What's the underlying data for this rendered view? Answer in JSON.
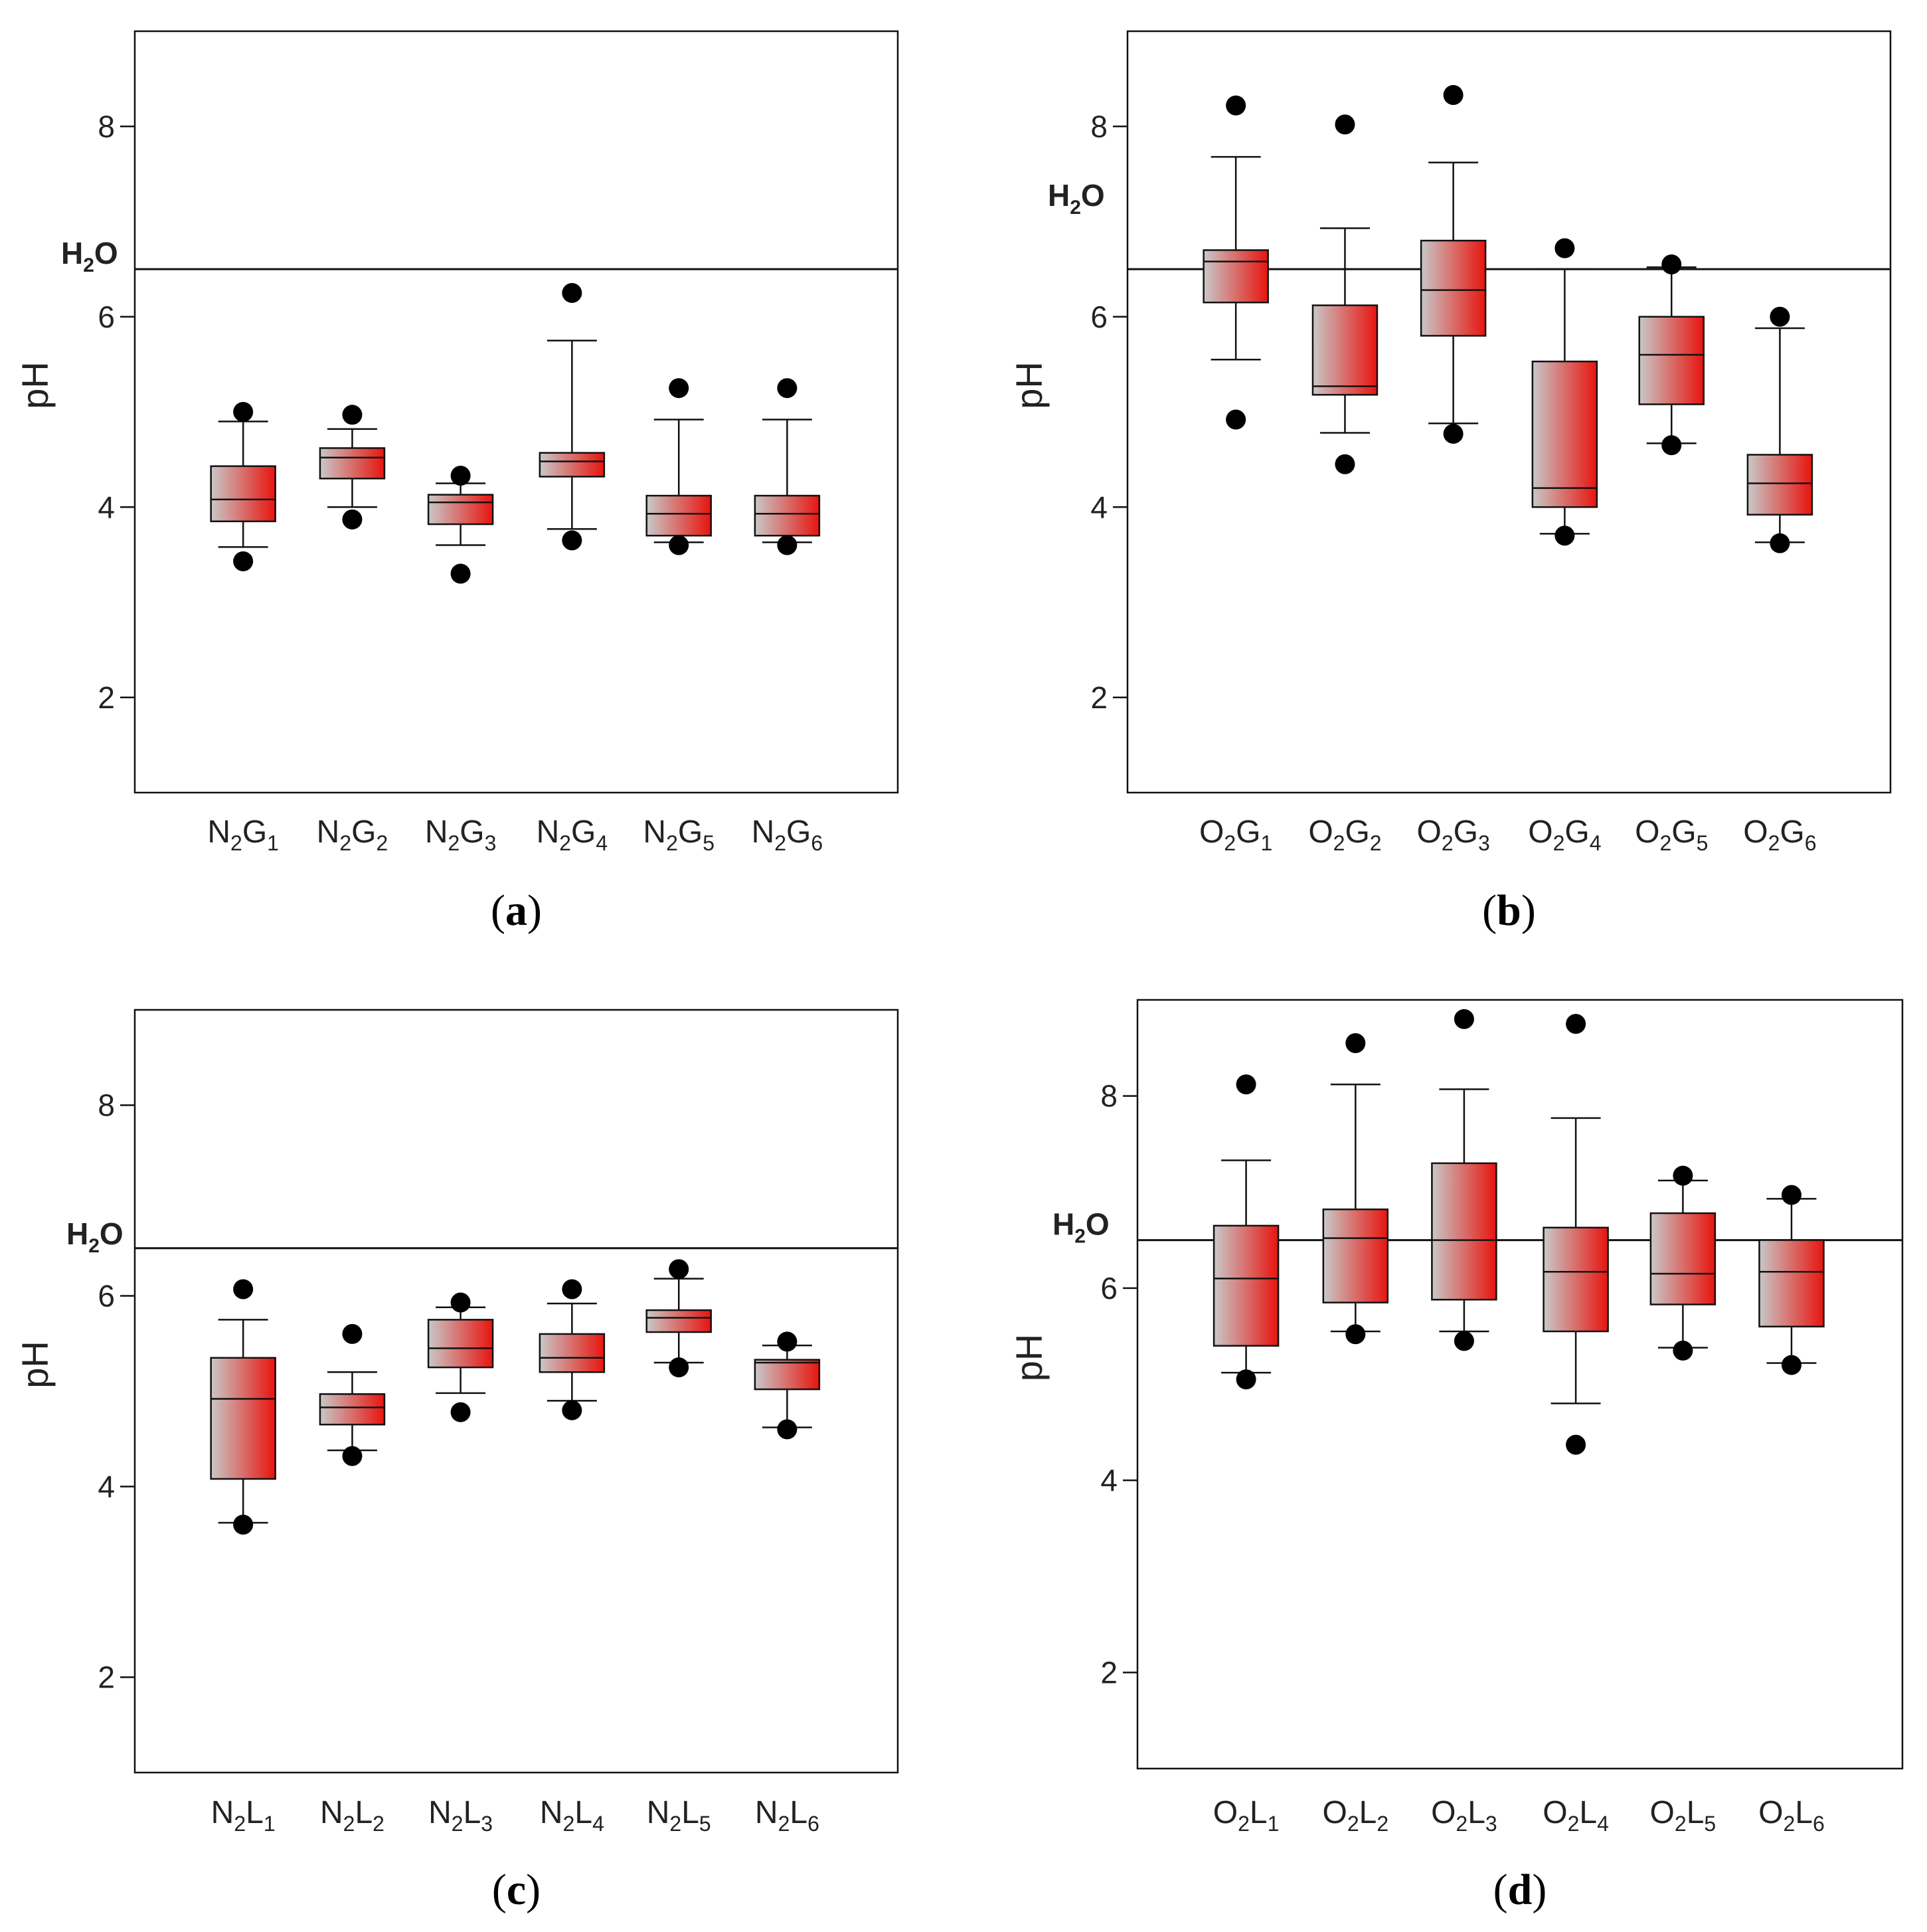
{
  "colors": {
    "box_gradient_start": "#c8c8c8",
    "box_gradient_end": "#e8140e",
    "line": "#111111",
    "point": "#000000"
  },
  "chart_data": [
    {
      "panel": "a",
      "type": "box",
      "caption": "a",
      "ylabel": "pH",
      "ylim": [
        1,
        9
      ],
      "yticks": [
        2,
        4,
        6,
        8
      ],
      "reference_line": {
        "label": "H2O",
        "label_main": "H",
        "label_sub": "2",
        "label_end": "O",
        "value": 6.5
      },
      "categories": [
        {
          "main": "N",
          "sub1": "2",
          "mid": "G",
          "sub2": "1"
        },
        {
          "main": "N",
          "sub1": "2",
          "mid": "G",
          "sub2": "2"
        },
        {
          "main": "N",
          "sub1": "2",
          "mid": "G",
          "sub2": "3"
        },
        {
          "main": "N",
          "sub1": "2",
          "mid": "G",
          "sub2": "4"
        },
        {
          "main": "N",
          "sub1": "2",
          "mid": "G",
          "sub2": "5"
        },
        {
          "main": "N",
          "sub1": "2",
          "mid": "G",
          "sub2": "6"
        }
      ],
      "boxes": [
        {
          "whisker_low": 3.58,
          "q1": 3.85,
          "median": 4.08,
          "q3": 4.43,
          "whisker_high": 4.9,
          "outliers": [
            3.43,
            5.0
          ]
        },
        {
          "whisker_low": 4.0,
          "q1": 4.3,
          "median": 4.52,
          "q3": 4.62,
          "whisker_high": 4.82,
          "outliers": [
            3.87,
            4.97
          ]
        },
        {
          "whisker_low": 3.6,
          "q1": 3.82,
          "median": 4.05,
          "q3": 4.13,
          "whisker_high": 4.25,
          "outliers": [
            3.3,
            4.33
          ]
        },
        {
          "whisker_low": 3.77,
          "q1": 4.32,
          "median": 4.48,
          "q3": 4.57,
          "whisker_high": 5.75,
          "outliers": [
            3.65,
            6.25
          ]
        },
        {
          "whisker_low": 3.63,
          "q1": 3.7,
          "median": 3.93,
          "q3": 4.12,
          "whisker_high": 4.92,
          "outliers": [
            3.6,
            5.25
          ]
        },
        {
          "whisker_low": 3.63,
          "q1": 3.7,
          "median": 3.93,
          "q3": 4.12,
          "whisker_high": 4.92,
          "outliers": [
            3.6,
            5.25
          ]
        }
      ]
    },
    {
      "panel": "b",
      "type": "box",
      "caption": "b",
      "ylabel": "pH",
      "ylim": [
        1,
        9
      ],
      "yticks": [
        2,
        4,
        6,
        8
      ],
      "reference_line": {
        "label": "H2O",
        "label_main": "H",
        "label_sub": "2",
        "label_end": "O",
        "value": 6.5
      },
      "categories": [
        {
          "main": "O",
          "sub1": "2",
          "mid": "G",
          "sub2": "1"
        },
        {
          "main": "O",
          "sub1": "2",
          "mid": "G",
          "sub2": "2"
        },
        {
          "main": "O",
          "sub1": "2",
          "mid": "G",
          "sub2": "3"
        },
        {
          "main": "O",
          "sub1": "2",
          "mid": "G",
          "sub2": "4"
        },
        {
          "main": "O",
          "sub1": "2",
          "mid": "G",
          "sub2": "5"
        },
        {
          "main": "O",
          "sub1": "2",
          "mid": "G",
          "sub2": "6"
        }
      ],
      "boxes": [
        {
          "whisker_low": 5.55,
          "q1": 6.15,
          "median": 6.58,
          "q3": 6.7,
          "whisker_high": 7.68,
          "outliers": [
            4.92,
            8.22
          ]
        },
        {
          "whisker_low": 4.78,
          "q1": 5.18,
          "median": 5.27,
          "q3": 6.12,
          "whisker_high": 6.93,
          "outliers": [
            4.45,
            8.02
          ]
        },
        {
          "whisker_low": 4.88,
          "q1": 5.8,
          "median": 6.28,
          "q3": 6.8,
          "whisker_high": 7.62,
          "outliers": [
            4.77,
            8.33
          ]
        },
        {
          "whisker_low": 3.72,
          "q1": 4.0,
          "median": 4.2,
          "q3": 5.53,
          "whisker_high": 6.5,
          "outliers": [
            3.7,
            6.72
          ]
        },
        {
          "whisker_low": 4.67,
          "q1": 5.08,
          "median": 5.6,
          "q3": 6.0,
          "whisker_high": 6.52,
          "outliers": [
            4.65,
            6.55
          ]
        },
        {
          "whisker_low": 3.63,
          "q1": 3.92,
          "median": 4.25,
          "q3": 4.55,
          "whisker_high": 5.88,
          "outliers": [
            3.62,
            6.0
          ]
        }
      ]
    },
    {
      "panel": "c",
      "type": "box",
      "caption": "c",
      "ylabel": "pH",
      "ylim": [
        1,
        9
      ],
      "yticks": [
        2,
        4,
        6,
        8
      ],
      "reference_line": {
        "label": "H2O",
        "label_main": "H",
        "label_sub": "2",
        "label_end": "O",
        "value": 6.5
      },
      "categories": [
        {
          "main": "N",
          "sub1": "2",
          "mid": "L",
          "sub2": "1"
        },
        {
          "main": "N",
          "sub1": "2",
          "mid": "L",
          "sub2": "2"
        },
        {
          "main": "N",
          "sub1": "2",
          "mid": "L",
          "sub2": "3"
        },
        {
          "main": "N",
          "sub1": "2",
          "mid": "L",
          "sub2": "4"
        },
        {
          "main": "N",
          "sub1": "2",
          "mid": "L",
          "sub2": "5"
        },
        {
          "main": "N",
          "sub1": "2",
          "mid": "L",
          "sub2": "6"
        }
      ],
      "boxes": [
        {
          "whisker_low": 3.62,
          "q1": 4.08,
          "median": 4.92,
          "q3": 5.35,
          "whisker_high": 5.75,
          "outliers": [
            3.6,
            6.07
          ]
        },
        {
          "whisker_low": 4.38,
          "q1": 4.65,
          "median": 4.83,
          "q3": 4.97,
          "whisker_high": 5.2,
          "outliers": [
            4.32,
            5.6
          ]
        },
        {
          "whisker_low": 4.98,
          "q1": 5.25,
          "median": 5.45,
          "q3": 5.75,
          "whisker_high": 5.88,
          "outliers": [
            4.78,
            5.93
          ]
        },
        {
          "whisker_low": 4.9,
          "q1": 5.2,
          "median": 5.35,
          "q3": 5.6,
          "whisker_high": 5.92,
          "outliers": [
            4.8,
            6.07
          ]
        },
        {
          "whisker_low": 5.3,
          "q1": 5.62,
          "median": 5.77,
          "q3": 5.85,
          "whisker_high": 6.18,
          "outliers": [
            5.25,
            6.28
          ]
        },
        {
          "whisker_low": 4.62,
          "q1": 5.02,
          "median": 5.3,
          "q3": 5.33,
          "whisker_high": 5.48,
          "outliers": [
            4.6,
            5.52
          ]
        }
      ]
    },
    {
      "panel": "d",
      "type": "box",
      "caption": "d",
      "ylabel": "pH",
      "ylim": [
        1,
        9
      ],
      "yticks": [
        2,
        4,
        6,
        8
      ],
      "reference_line": {
        "label": "H2O",
        "label_main": "H",
        "label_sub": "2",
        "label_end": "O",
        "value": 6.5
      },
      "categories": [
        {
          "main": "O",
          "sub1": "2",
          "mid": "L",
          "sub2": "1"
        },
        {
          "main": "O",
          "sub1": "2",
          "mid": "L",
          "sub2": "2"
        },
        {
          "main": "O",
          "sub1": "2",
          "mid": "L",
          "sub2": "3"
        },
        {
          "main": "O",
          "sub1": "2",
          "mid": "L",
          "sub2": "4"
        },
        {
          "main": "O",
          "sub1": "2",
          "mid": "L",
          "sub2": "5"
        },
        {
          "main": "O",
          "sub1": "2",
          "mid": "L",
          "sub2": "6"
        }
      ],
      "boxes": [
        {
          "whisker_low": 5.12,
          "q1": 5.4,
          "median": 6.1,
          "q3": 6.65,
          "whisker_high": 7.33,
          "outliers": [
            5.05,
            8.12
          ]
        },
        {
          "whisker_low": 5.55,
          "q1": 5.85,
          "median": 6.52,
          "q3": 6.82,
          "whisker_high": 8.12,
          "outliers": [
            5.52,
            8.55
          ]
        },
        {
          "whisker_low": 5.55,
          "q1": 5.88,
          "median": 6.5,
          "q3": 7.3,
          "whisker_high": 8.07,
          "outliers": [
            5.45,
            8.8
          ]
        },
        {
          "whisker_low": 4.8,
          "q1": 5.55,
          "median": 6.17,
          "q3": 6.63,
          "whisker_high": 7.77,
          "outliers": [
            4.37,
            8.75
          ]
        },
        {
          "whisker_low": 5.38,
          "q1": 5.83,
          "median": 6.15,
          "q3": 6.78,
          "whisker_high": 7.12,
          "outliers": [
            5.35,
            7.17
          ]
        },
        {
          "whisker_low": 5.22,
          "q1": 5.6,
          "median": 6.17,
          "q3": 6.5,
          "whisker_high": 6.93,
          "outliers": [
            5.2,
            6.97
          ]
        }
      ]
    }
  ]
}
